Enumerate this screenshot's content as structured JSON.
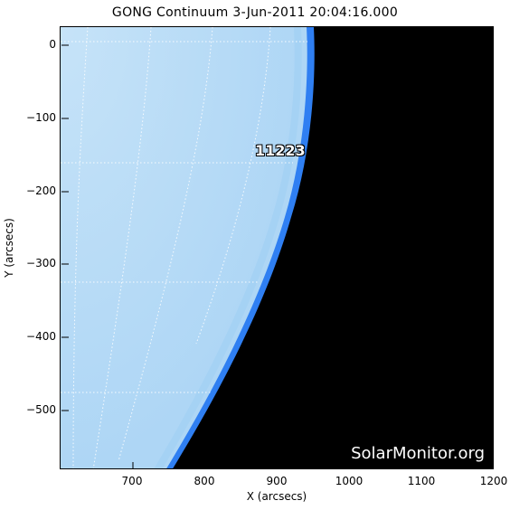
{
  "title": "GONG Continuum   3-Jun-2011 20:04:16.000",
  "x_axis": {
    "label": "X (arcsecs)",
    "ticks": [
      "700",
      "800",
      "900",
      "1000",
      "1100",
      "1200"
    ],
    "range": [
      600,
      1200
    ]
  },
  "y_axis": {
    "label": "Y (arcsecs)",
    "ticks": [
      "0",
      "−100",
      "−200",
      "−300",
      "−400",
      "−500"
    ],
    "range": [
      -580,
      25
    ]
  },
  "region_label": "11223",
  "watermark": "SolarMonitor.org",
  "colors": {
    "disk": "#b9dcf6",
    "limb": "#2f7ff2",
    "space": "#000000",
    "grid": "#ffffff"
  }
}
